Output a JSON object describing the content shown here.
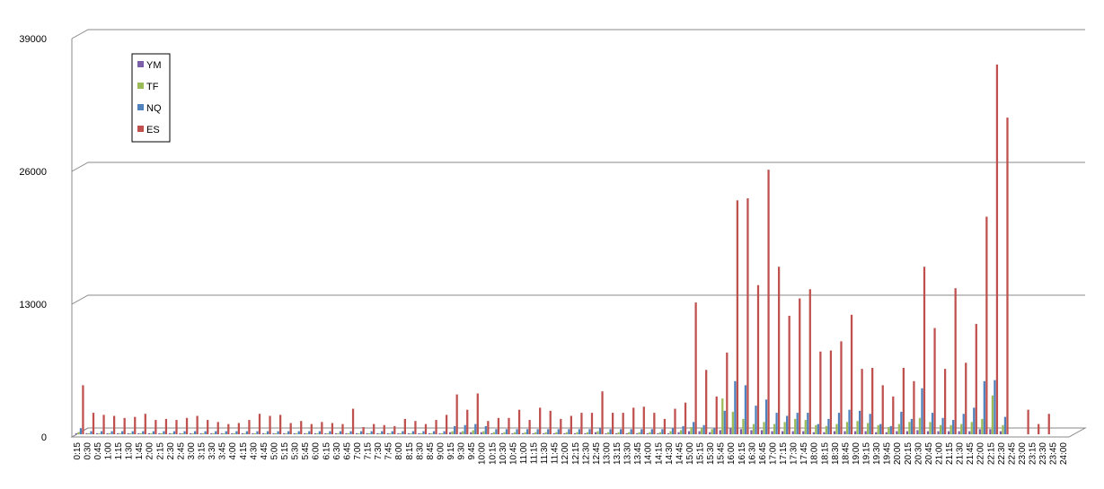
{
  "chart_data": {
    "type": "bar3d",
    "categories": [
      "0:15",
      "0:30",
      "0:45",
      "1:00",
      "1:15",
      "1:30",
      "1:45",
      "2:00",
      "2:15",
      "2:30",
      "2:45",
      "3:00",
      "3:15",
      "3:30",
      "3:45",
      "4:00",
      "4:15",
      "4:30",
      "4:45",
      "5:00",
      "5:15",
      "5:30",
      "5:45",
      "6:00",
      "6:15",
      "6:30",
      "6:45",
      "7:00",
      "7:15",
      "7:30",
      "7:45",
      "8:00",
      "8:15",
      "8:30",
      "8:45",
      "9:00",
      "9:15",
      "9:30",
      "9:45",
      "10:00",
      "10:15",
      "10:30",
      "10:45",
      "11:00",
      "11:15",
      "11:30",
      "11:45",
      "12:00",
      "12:15",
      "12:30",
      "12:45",
      "13:00",
      "13:15",
      "13:30",
      "13:45",
      "14:00",
      "14:15",
      "14:30",
      "14:45",
      "15:00",
      "15:15",
      "15:30",
      "15:45",
      "16:00",
      "16:15",
      "16:30",
      "16:45",
      "17:00",
      "17:15",
      "17:30",
      "17:45",
      "18:00",
      "18:15",
      "18:30",
      "18:45",
      "19:00",
      "19:15",
      "19:30",
      "19:45",
      "20:00",
      "20:15",
      "20:30",
      "20:45",
      "21:00",
      "21:15",
      "21:30",
      "21:45",
      "22:00",
      "22:15",
      "22:30",
      "22:45",
      "23:00",
      "23:15",
      "23:30",
      "23:45",
      "24:00"
    ],
    "series": [
      {
        "name": "YM",
        "color": "#7b5fa8",
        "values": [
          100,
          100,
          100,
          100,
          100,
          100,
          100,
          100,
          100,
          100,
          100,
          100,
          100,
          100,
          100,
          100,
          100,
          100,
          100,
          100,
          100,
          100,
          100,
          100,
          100,
          100,
          100,
          100,
          100,
          100,
          100,
          100,
          100,
          100,
          100,
          100,
          200,
          200,
          200,
          200,
          100,
          100,
          100,
          100,
          100,
          100,
          100,
          100,
          100,
          100,
          200,
          100,
          100,
          100,
          100,
          100,
          100,
          100,
          200,
          300,
          300,
          200,
          400,
          600,
          500,
          400,
          400,
          300,
          300,
          300,
          300,
          200,
          200,
          300,
          300,
          300,
          300,
          200,
          200,
          300,
          300,
          400,
          300,
          300,
          300,
          300,
          300,
          500,
          500,
          300,
          0,
          0,
          0,
          0,
          0,
          0
        ]
      },
      {
        "name": "TF",
        "color": "#9bbb59",
        "values": [
          200,
          100,
          100,
          100,
          100,
          100,
          100,
          100,
          100,
          100,
          100,
          100,
          100,
          100,
          100,
          100,
          100,
          100,
          100,
          100,
          100,
          100,
          100,
          100,
          100,
          100,
          100,
          100,
          100,
          100,
          100,
          100,
          100,
          100,
          100,
          100,
          300,
          300,
          400,
          300,
          200,
          200,
          200,
          200,
          200,
          200,
          200,
          200,
          200,
          200,
          300,
          200,
          200,
          200,
          200,
          200,
          200,
          300,
          400,
          700,
          600,
          500,
          3500,
          2200,
          1500,
          1000,
          1200,
          1000,
          1200,
          1500,
          1400,
          900,
          800,
          1000,
          1200,
          1300,
          1100,
          900,
          700,
          1000,
          1200,
          1600,
          1200,
          900,
          900,
          1000,
          1200,
          1500,
          3800,
          900,
          0,
          0,
          0,
          0,
          0,
          0
        ]
      },
      {
        "name": "NQ",
        "color": "#4f81bd",
        "values": [
          600,
          300,
          300,
          300,
          300,
          300,
          300,
          300,
          300,
          300,
          300,
          300,
          300,
          300,
          300,
          300,
          300,
          300,
          300,
          300,
          300,
          300,
          300,
          300,
          300,
          300,
          300,
          300,
          300,
          300,
          300,
          300,
          300,
          300,
          300,
          300,
          800,
          900,
          1000,
          800,
          500,
          500,
          500,
          500,
          500,
          500,
          500,
          500,
          500,
          500,
          600,
          500,
          500,
          500,
          500,
          500,
          500,
          600,
          800,
          1200,
          900,
          600,
          2300,
          5200,
          4800,
          2800,
          3400,
          2100,
          1800,
          2100,
          2100,
          1000,
          1500,
          2100,
          2400,
          2300,
          2000,
          1000,
          800,
          2200,
          1500,
          4500,
          2100,
          1600,
          1400,
          2000,
          2600,
          5200,
          5300,
          1700,
          0,
          0,
          0,
          0,
          0,
          0
        ]
      },
      {
        "name": "ES",
        "color": "#c0504d",
        "values": [
          4800,
          2100,
          1900,
          1800,
          1600,
          1700,
          2000,
          1400,
          1500,
          1400,
          1600,
          1800,
          1400,
          1200,
          1000,
          1100,
          1400,
          2000,
          1800,
          1900,
          1100,
          1300,
          1000,
          1200,
          1100,
          1000,
          2500,
          700,
          1000,
          900,
          800,
          1500,
          1300,
          1000,
          1400,
          1900,
          3900,
          2400,
          4000,
          1300,
          1600,
          1600,
          2400,
          1400,
          2600,
          2300,
          1500,
          1800,
          2100,
          2100,
          4200,
          2100,
          2100,
          2600,
          2700,
          2100,
          1500,
          2500,
          3100,
          12900,
          6300,
          3700,
          8000,
          22900,
          23100,
          14600,
          25900,
          16400,
          11600,
          13300,
          14200,
          8100,
          8200,
          9100,
          11700,
          6400,
          6500,
          4800,
          3700,
          6500,
          5200,
          16400,
          10400,
          6400,
          14300,
          7000,
          10800,
          21300,
          36200,
          31000,
          0,
          2400,
          1000,
          2000,
          0,
          0
        ]
      }
    ],
    "ylim": [
      0,
      39000
    ],
    "yticks": [
      0,
      13000,
      26000,
      39000
    ],
    "grid": true
  }
}
